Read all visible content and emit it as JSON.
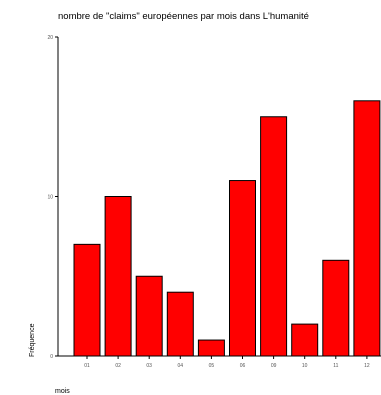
{
  "chart_data": {
    "type": "bar",
    "title": "nombre de \"claims\" européennes par mois dans L'humanité",
    "xlabel": "mois",
    "ylabel": "Fréquence",
    "categories": [
      "01",
      "02",
      "03",
      "04",
      "05",
      "06",
      "09",
      "10",
      "11",
      "12"
    ],
    "values": [
      7,
      10,
      5,
      4,
      1,
      11,
      15,
      2,
      6,
      16
    ],
    "ylim": [
      0,
      20
    ],
    "yticks": [
      "0",
      "10",
      "20"
    ],
    "grid": false,
    "legend": "none",
    "colors": {
      "bar_fill": "#ff0000",
      "bar_stroke": "#000000",
      "axis": "#000000",
      "background": "#ffffff"
    }
  }
}
